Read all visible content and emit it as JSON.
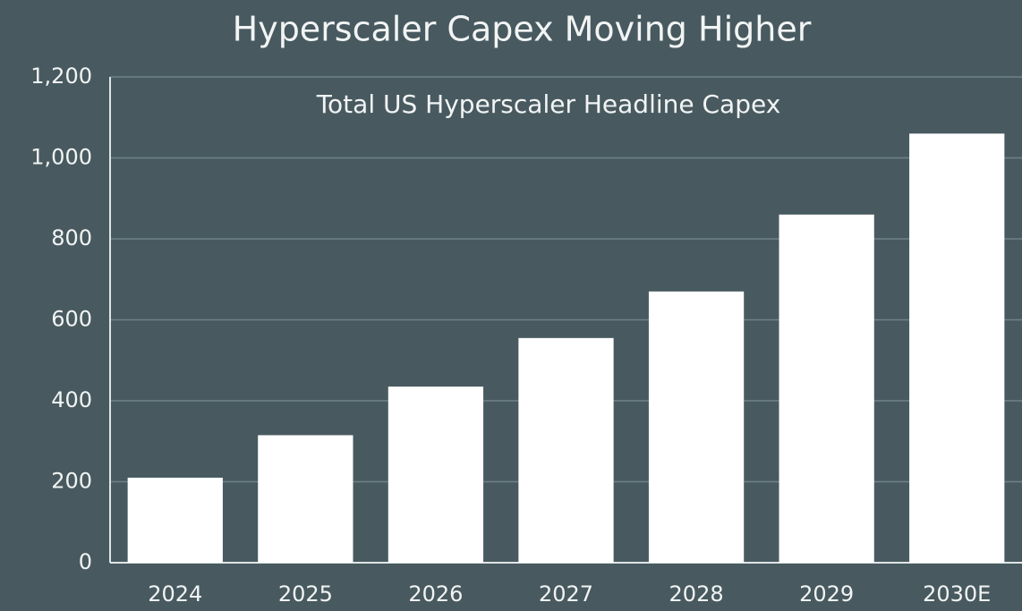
{
  "chart_data": {
    "type": "bar",
    "title": "Hyperscaler Capex Moving Higher",
    "subtitle": "Total US Hyperscaler Headline Capex",
    "categories": [
      "2024",
      "2025",
      "2026",
      "2027",
      "2028",
      "2029",
      "2030E"
    ],
    "values": [
      210,
      315,
      435,
      555,
      670,
      860,
      1060
    ],
    "color": "#ffffff",
    "ylim": [
      0,
      1200
    ],
    "yticks": [
      0,
      200,
      400,
      600,
      800,
      {
        "value": 1000,
        "label": "1,000"
      },
      {
        "value": 1200,
        "label": "1,200"
      }
    ],
    "grid": true
  }
}
